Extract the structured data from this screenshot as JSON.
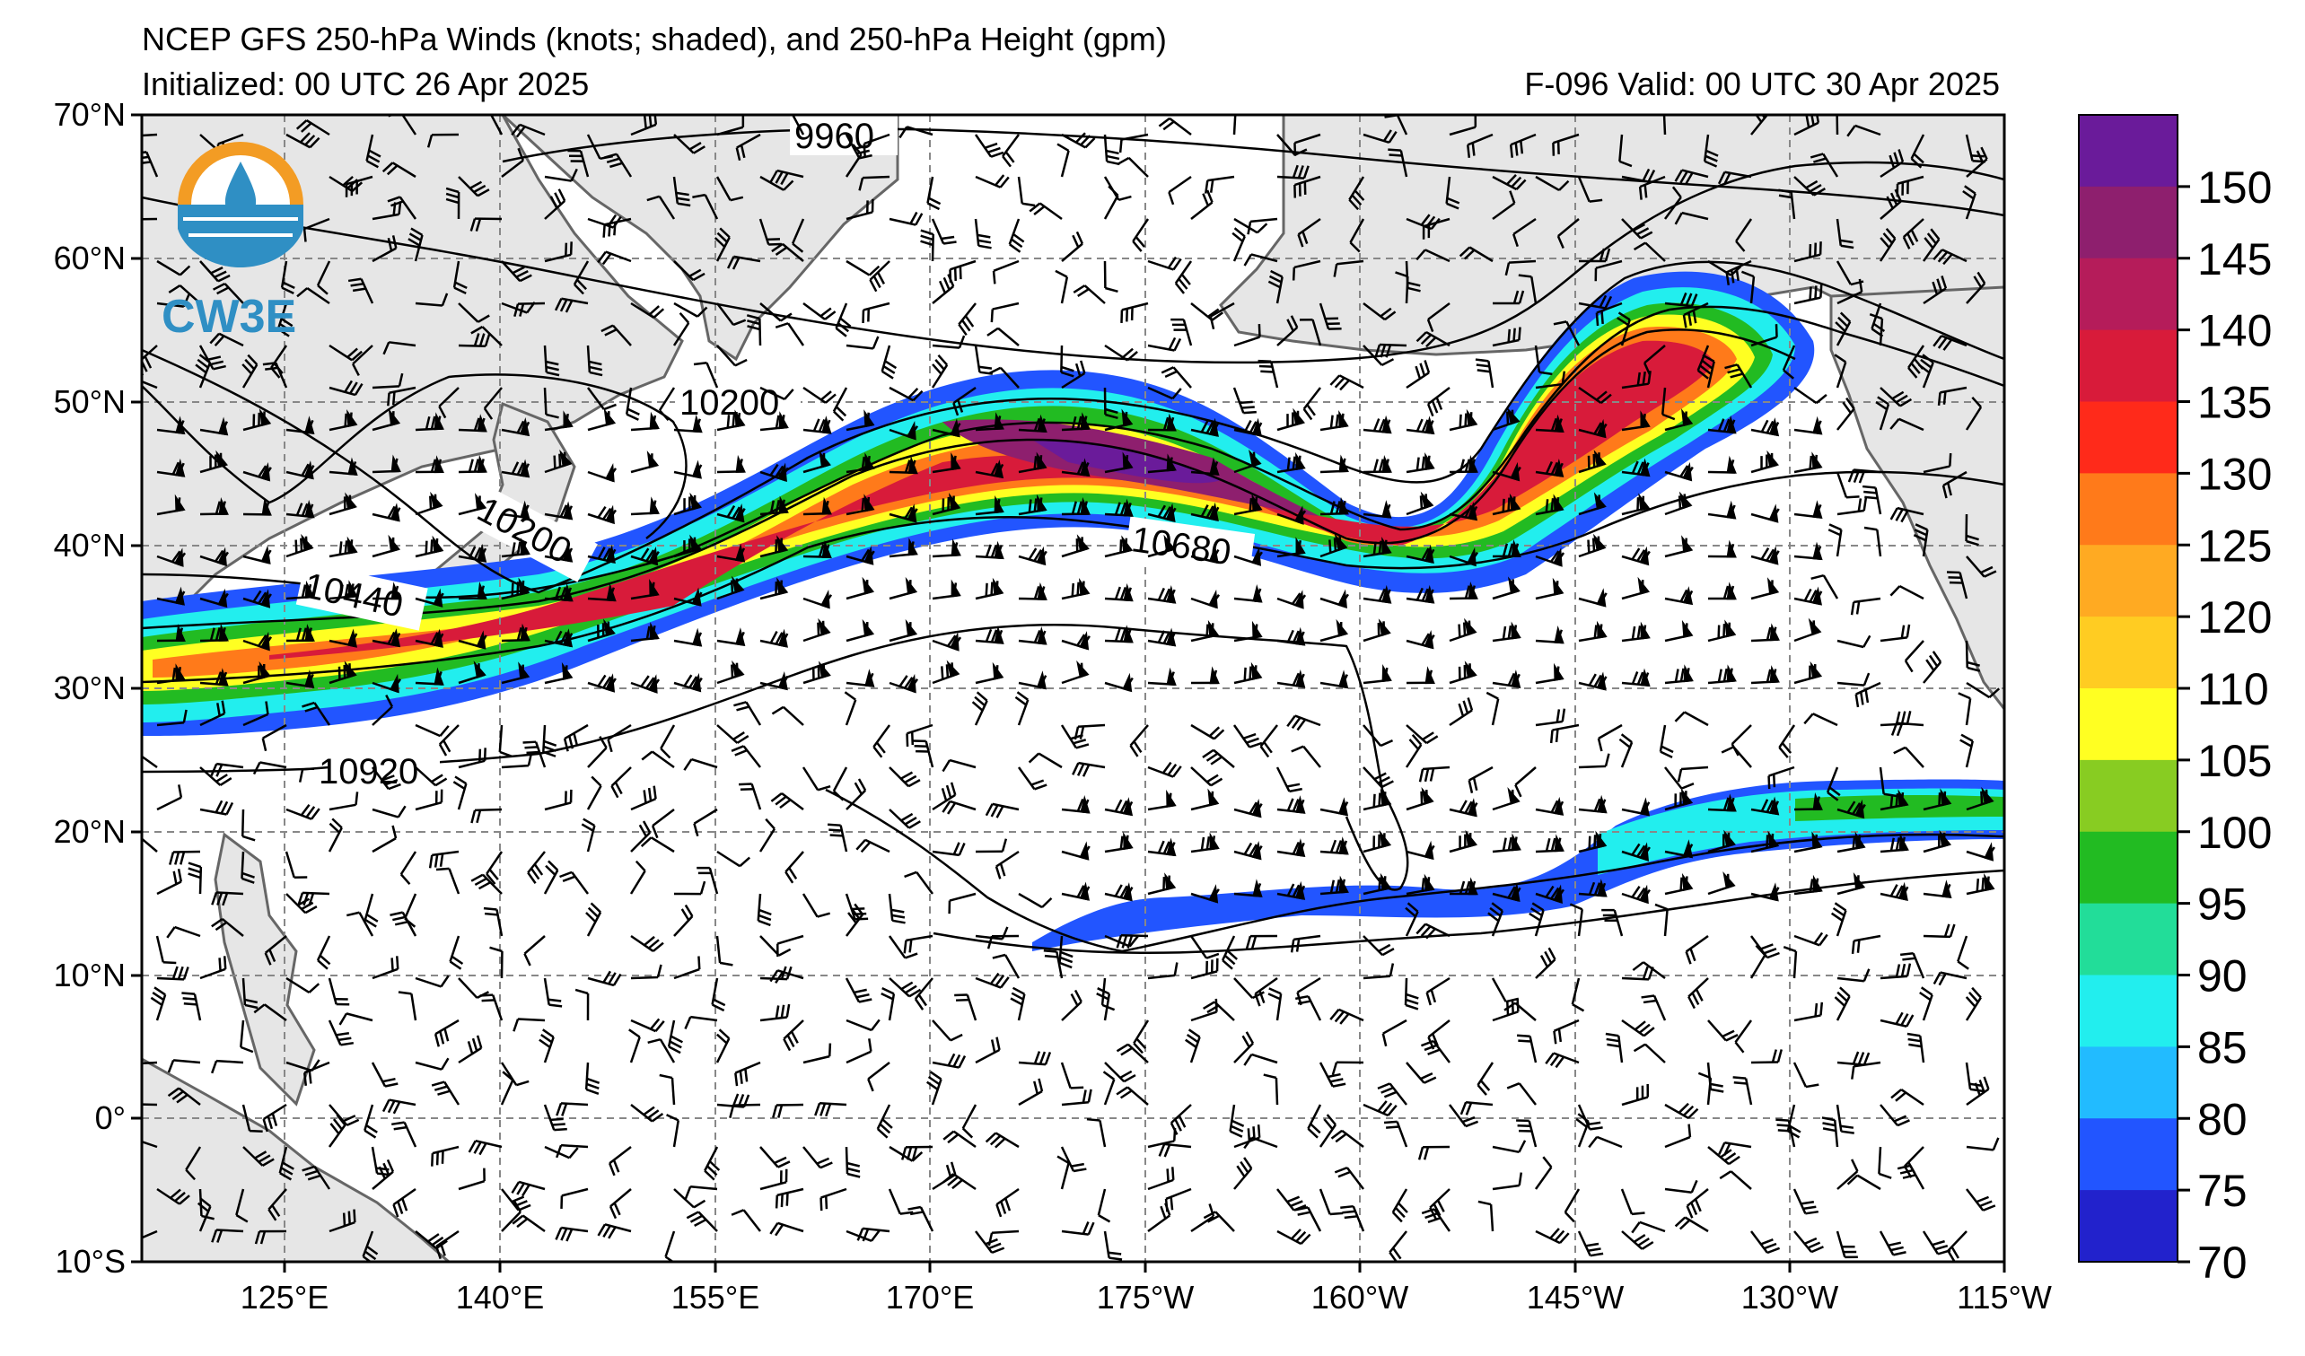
{
  "header": {
    "title": "NCEP GFS 250-hPa Winds (knots; shaded), and 250-hPa Height (gpm)",
    "initialized": "Initialized: 00 UTC 26 Apr 2025",
    "valid": "F-096  Valid: 00 UTC 30 Apr 2025"
  },
  "logo": {
    "text": "CW3E"
  },
  "axes": {
    "lon_labels": [
      "125°E",
      "140°E",
      "155°E",
      "170°E",
      "175°W",
      "160°W",
      "145°W",
      "130°W",
      "115°W"
    ],
    "lat_labels": [
      "70°N",
      "60°N",
      "50°N",
      "40°N",
      "30°N",
      "20°N",
      "10°N",
      "0°",
      "10°S"
    ]
  },
  "colorbar": {
    "labels": [
      "150",
      "145",
      "140",
      "135",
      "130",
      "125",
      "120",
      "110",
      "105",
      "100",
      "95",
      "90",
      "85",
      "80",
      "75",
      "70"
    ],
    "colors": [
      "#6a1b9a",
      "#8e1f6e",
      "#b51c5a",
      "#d81b3a",
      "#ff2a1a",
      "#ff7a1a",
      "#ffaa22",
      "#ffcc22",
      "#ffff22",
      "#88cc22",
      "#22bb22",
      "#22dd99",
      "#22eeee",
      "#22bbff",
      "#2255ff",
      "#2222cc"
    ]
  },
  "contour_labels": [
    "9960",
    "10200",
    "10200",
    "10440",
    "10680",
    "10920"
  ],
  "colors": {
    "land": "#e6e6e6",
    "ocean": "#ffffff",
    "grid": "#888888",
    "coast": "#666666"
  }
}
